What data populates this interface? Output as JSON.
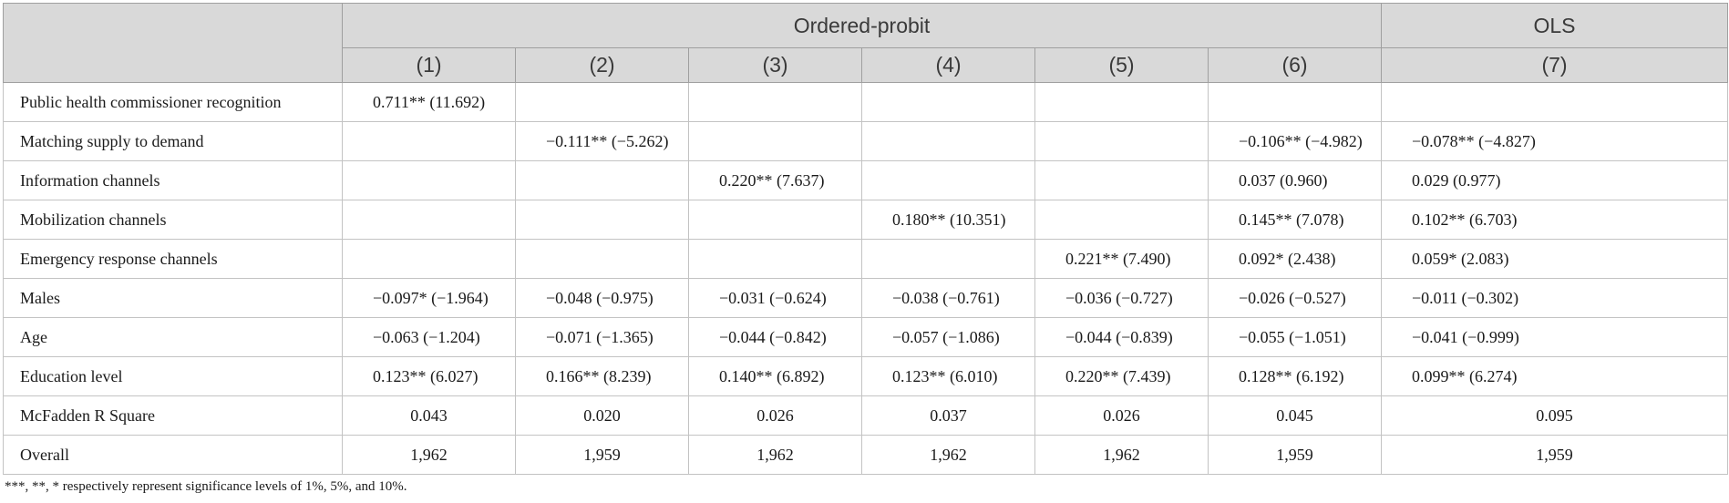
{
  "header": {
    "group_ordered_probit": "Ordered-probit",
    "group_ols": "OLS",
    "columns": [
      "(1)",
      "(2)",
      "(3)",
      "(4)",
      "(5)",
      "(6)",
      "(7)"
    ]
  },
  "rows": [
    {
      "label": "Public health commissioner recognition",
      "cells": [
        "0.711** (11.692)",
        "",
        "",
        "",
        "",
        "",
        ""
      ]
    },
    {
      "label": "Matching supply to demand",
      "cells": [
        "",
        "−0.111** (−5.262)",
        "",
        "",
        "",
        "−0.106** (−4.982)",
        "−0.078** (−4.827)"
      ]
    },
    {
      "label": "Information channels",
      "cells": [
        "",
        "",
        "0.220** (7.637)",
        "",
        "",
        "0.037 (0.960)",
        "0.029 (0.977)"
      ]
    },
    {
      "label": "Mobilization channels",
      "cells": [
        "",
        "",
        "",
        "0.180** (10.351)",
        "",
        "0.145** (7.078)",
        "0.102** (6.703)"
      ]
    },
    {
      "label": "Emergency response channels",
      "cells": [
        "",
        "",
        "",
        "",
        "0.221** (7.490)",
        "0.092* (2.438)",
        "0.059* (2.083)"
      ]
    },
    {
      "label": "Males",
      "cells": [
        "−0.097* (−1.964)",
        "−0.048 (−0.975)",
        "−0.031 (−0.624)",
        "−0.038 (−0.761)",
        "−0.036 (−0.727)",
        "−0.026 (−0.527)",
        "−0.011 (−0.302)"
      ]
    },
    {
      "label": "Age",
      "cells": [
        "−0.063 (−1.204)",
        "−0.071 (−1.365)",
        "−0.044 (−0.842)",
        "−0.057 (−1.086)",
        "−0.044 (−0.839)",
        "−0.055 (−1.051)",
        "−0.041 (−0.999)"
      ]
    },
    {
      "label": "Education level",
      "cells": [
        "0.123** (6.027)",
        "0.166** (8.239)",
        "0.140** (6.892)",
        "0.123** (6.010)",
        "0.220** (7.439)",
        "0.128** (6.192)",
        "0.099** (6.274)"
      ]
    },
    {
      "label": "McFadden R Square",
      "cells": [
        "0.043",
        "0.020",
        "0.026",
        "0.037",
        "0.026",
        "0.045",
        "0.095"
      ]
    },
    {
      "label": "Overall",
      "cells": [
        "1,962",
        "1,959",
        "1,962",
        "1,962",
        "1,962",
        "1,959",
        "1,959"
      ]
    }
  ],
  "footnote": "***, **, * respectively represent significance levels of 1%, 5%, and 10%."
}
